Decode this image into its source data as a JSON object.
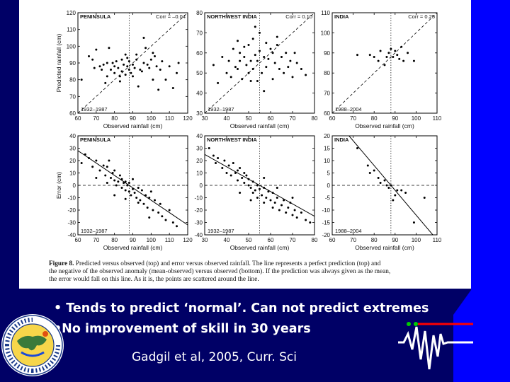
{
  "slide": {
    "bullets": [
      "• Tends to predict ‘normal’. Can not predict extremes",
      "•No improvement of skill in 30 years"
    ],
    "citation": "Gadgil et al, 2005, Curr. Sci"
  },
  "figure": {
    "caption_label": "Figure 8.",
    "caption_lines": [
      "Predicted versus observed (top) and error versus observed rainfall. The line represents a perfect prediction (top) and",
      "the negative of the observed anomaly (mean-observed) versus observed (bottom). If the prediction was always given as the mean,",
      "the error would fall on this line. As it is, the points are scattered around the line."
    ]
  },
  "colors": {
    "background": "#000066",
    "accent_blue": "#0000ff",
    "line_red": "#ff0000",
    "dot_green": "#00cc00"
  },
  "chart_data": [
    {
      "type": "scatter",
      "title": "PENINSULA",
      "corr": "Corr = –0.04",
      "period": "1932–1987",
      "xlabel": "Observed rainfall (cm)",
      "ylabel": "Predicted rainfall (cm)",
      "xlim": [
        60,
        120
      ],
      "ylim": [
        60,
        120
      ],
      "xticks": [
        60,
        70,
        80,
        90,
        100,
        110,
        120
      ],
      "yticks": [
        60,
        70,
        80,
        90,
        100,
        110,
        120
      ],
      "mean": 88,
      "reference": "identity",
      "points": [
        [
          62,
          80
        ],
        [
          66,
          94
        ],
        [
          68,
          92
        ],
        [
          70,
          98
        ],
        [
          72,
          88
        ],
        [
          73,
          86
        ],
        [
          74,
          89
        ],
        [
          75,
          78
        ],
        [
          76,
          82
        ],
        [
          77,
          99
        ],
        [
          78,
          86
        ],
        [
          79,
          90
        ],
        [
          80,
          88
        ],
        [
          80,
          84
        ],
        [
          81,
          91
        ],
        [
          82,
          87
        ],
        [
          83,
          79
        ],
        [
          84,
          92
        ],
        [
          84,
          85
        ],
        [
          85,
          89
        ],
        [
          86,
          83
        ],
        [
          86,
          95
        ],
        [
          87,
          88
        ],
        [
          88,
          86
        ],
        [
          88,
          91
        ],
        [
          89,
          84
        ],
        [
          90,
          82
        ],
        [
          90,
          89
        ],
        [
          91,
          87
        ],
        [
          92,
          92
        ],
        [
          93,
          76
        ],
        [
          94,
          86
        ],
        [
          95,
          85
        ],
        [
          96,
          90
        ],
        [
          96,
          105
        ],
        [
          98,
          89
        ],
        [
          99,
          87
        ],
        [
          100,
          92
        ],
        [
          101,
          80
        ],
        [
          102,
          94
        ],
        [
          103,
          88
        ],
        [
          104,
          74
        ],
        [
          105,
          86
        ],
        [
          106,
          91
        ],
        [
          108,
          80
        ],
        [
          110,
          88
        ],
        [
          112,
          75
        ],
        [
          114,
          84
        ],
        [
          115,
          90
        ],
        [
          101,
          96
        ],
        [
          97,
          99
        ],
        [
          92,
          95
        ],
        [
          87,
          93
        ],
        [
          83,
          82
        ],
        [
          76,
          90
        ],
        [
          69,
          87
        ]
      ]
    },
    {
      "type": "scatter",
      "title": "NORTHWEST INDIA",
      "corr": "Corr = 0.10",
      "period": "1932–1987",
      "xlabel": "Observed rainfall (cm)",
      "ylabel": "",
      "xlim": [
        30,
        80
      ],
      "ylim": [
        30,
        80
      ],
      "xticks": [
        30,
        40,
        50,
        60,
        70,
        80
      ],
      "yticks": [
        30,
        40,
        50,
        60,
        70,
        80
      ],
      "mean": 55,
      "reference": "identity",
      "points": [
        [
          34,
          54
        ],
        [
          36,
          45
        ],
        [
          38,
          58
        ],
        [
          40,
          50
        ],
        [
          41,
          56
        ],
        [
          42,
          48
        ],
        [
          43,
          62
        ],
        [
          44,
          53
        ],
        [
          45,
          52
        ],
        [
          46,
          60
        ],
        [
          46,
          56
        ],
        [
          47,
          47
        ],
        [
          48,
          58
        ],
        [
          48,
          63
        ],
        [
          49,
          54
        ],
        [
          50,
          50
        ],
        [
          50,
          64
        ],
        [
          51,
          56
        ],
        [
          52,
          52
        ],
        [
          52,
          67
        ],
        [
          53,
          59
        ],
        [
          54,
          46
        ],
        [
          54,
          56
        ],
        [
          55,
          70
        ],
        [
          55,
          61
        ],
        [
          56,
          50
        ],
        [
          57,
          58
        ],
        [
          58,
          65
        ],
        [
          58,
          53
        ],
        [
          59,
          57
        ],
        [
          60,
          62
        ],
        [
          61,
          47
        ],
        [
          61,
          60
        ],
        [
          62,
          55
        ],
        [
          63,
          64
        ],
        [
          64,
          52
        ],
        [
          65,
          58
        ],
        [
          66,
          50
        ],
        [
          67,
          60
        ],
        [
          68,
          53
        ],
        [
          69,
          56
        ],
        [
          70,
          48
        ],
        [
          71,
          60
        ],
        [
          72,
          55
        ],
        [
          74,
          52
        ],
        [
          76,
          49
        ],
        [
          57,
          41
        ],
        [
          45,
          66
        ],
        [
          51,
          46
        ],
        [
          63,
          68
        ],
        [
          53,
          73
        ]
      ]
    },
    {
      "type": "scatter",
      "title": "INDIA",
      "corr": "Corr = 0.25",
      "period": "1988–2004",
      "xlabel": "Observed rainfall (cm)",
      "ylabel": "",
      "xlim": [
        60,
        110
      ],
      "ylim": [
        60,
        110
      ],
      "xticks": [
        60,
        70,
        80,
        90,
        100,
        110
      ],
      "yticks": [
        60,
        70,
        80,
        90,
        100,
        110
      ],
      "mean": 88,
      "reference": "identity",
      "points": [
        [
          72,
          89
        ],
        [
          80,
          88
        ],
        [
          82,
          86
        ],
        [
          83,
          91
        ],
        [
          86,
          88
        ],
        [
          87,
          90
        ],
        [
          88,
          92
        ],
        [
          89,
          88
        ],
        [
          90,
          91
        ],
        [
          91,
          89
        ],
        [
          92,
          87
        ],
        [
          94,
          86
        ],
        [
          96,
          90
        ],
        [
          99,
          86
        ],
        [
          85,
          84
        ],
        [
          78,
          89
        ],
        [
          93,
          93
        ]
      ]
    },
    {
      "type": "scatter",
      "title": "PENINSULA",
      "corr": "",
      "period": "1932–1987",
      "xlabel": "Observed rainfall (cm)",
      "ylabel": "Error (cm)",
      "xlim": [
        60,
        120
      ],
      "ylim": [
        -40,
        40
      ],
      "xticks": [
        60,
        70,
        80,
        90,
        100,
        110,
        120
      ],
      "yticks": [
        -40,
        -30,
        -20,
        -10,
        0,
        10,
        20,
        30,
        40
      ],
      "mean": 88,
      "reference": "mean-minus-observed",
      "points": [
        [
          62,
          18
        ],
        [
          64,
          25
        ],
        [
          66,
          22
        ],
        [
          68,
          15
        ],
        [
          70,
          20
        ],
        [
          72,
          12
        ],
        [
          74,
          16
        ],
        [
          75,
          8
        ],
        [
          76,
          15
        ],
        [
          77,
          20
        ],
        [
          78,
          6
        ],
        [
          79,
          10
        ],
        [
          80,
          4
        ],
        [
          80,
          12
        ],
        [
          81,
          0
        ],
        [
          82,
          3
        ],
        [
          83,
          8
        ],
        [
          84,
          -2
        ],
        [
          84,
          5
        ],
        [
          85,
          2
        ],
        [
          86,
          -4
        ],
        [
          86,
          3
        ],
        [
          87,
          0
        ],
        [
          88,
          -5
        ],
        [
          88,
          2
        ],
        [
          89,
          -8
        ],
        [
          90,
          -3
        ],
        [
          90,
          5
        ],
        [
          91,
          -6
        ],
        [
          92,
          -10
        ],
        [
          93,
          -2
        ],
        [
          94,
          -12
        ],
        [
          95,
          -4
        ],
        [
          96,
          -15
        ],
        [
          97,
          -8
        ],
        [
          98,
          -18
        ],
        [
          99,
          -10
        ],
        [
          100,
          -5
        ],
        [
          101,
          -20
        ],
        [
          102,
          -12
        ],
        [
          104,
          -22
        ],
        [
          105,
          -15
        ],
        [
          106,
          -25
        ],
        [
          108,
          -28
        ],
        [
          110,
          -20
        ],
        [
          112,
          -30
        ],
        [
          114,
          -33
        ],
        [
          99,
          -26
        ],
        [
          93,
          -14
        ],
        [
          86,
          -11
        ],
        [
          80,
          -8
        ],
        [
          76,
          2
        ],
        [
          70,
          6
        ]
      ]
    },
    {
      "type": "scatter",
      "title": "NORTHWEST INDIA",
      "corr": "",
      "period": "1932–1987",
      "xlabel": "Observed rainfall (cm)",
      "ylabel": "",
      "xlim": [
        30,
        80
      ],
      "ylim": [
        -40,
        40
      ],
      "xticks": [
        30,
        40,
        50,
        60,
        70,
        80
      ],
      "yticks": [
        -40,
        -30,
        -20,
        -10,
        0,
        10,
        20,
        30,
        40
      ],
      "mean": 55,
      "reference": "mean-minus-observed",
      "points": [
        [
          32,
          30
        ],
        [
          34,
          24
        ],
        [
          35,
          18
        ],
        [
          36,
          22
        ],
        [
          38,
          14
        ],
        [
          39,
          20
        ],
        [
          40,
          10
        ],
        [
          41,
          16
        ],
        [
          42,
          8
        ],
        [
          43,
          18
        ],
        [
          44,
          10
        ],
        [
          45,
          4
        ],
        [
          45,
          12
        ],
        [
          46,
          14
        ],
        [
          47,
          6
        ],
        [
          48,
          2
        ],
        [
          48,
          10
        ],
        [
          49,
          8
        ],
        [
          50,
          0
        ],
        [
          50,
          5
        ],
        [
          51,
          -2
        ],
        [
          52,
          3
        ],
        [
          52,
          -6
        ],
        [
          53,
          -4
        ],
        [
          54,
          0
        ],
        [
          54,
          -10
        ],
        [
          55,
          -3
        ],
        [
          56,
          -8
        ],
        [
          57,
          -14
        ],
        [
          57,
          -2
        ],
        [
          58,
          -10
        ],
        [
          59,
          -5
        ],
        [
          60,
          -12
        ],
        [
          61,
          -18
        ],
        [
          61,
          -6
        ],
        [
          62,
          -14
        ],
        [
          63,
          -10
        ],
        [
          64,
          -20
        ],
        [
          65,
          -16
        ],
        [
          66,
          -12
        ],
        [
          67,
          -22
        ],
        [
          68,
          -18
        ],
        [
          69,
          -14
        ],
        [
          70,
          -24
        ],
        [
          71,
          -20
        ],
        [
          72,
          -26
        ],
        [
          74,
          -22
        ],
        [
          76,
          -28
        ],
        [
          78,
          -30
        ],
        [
          51,
          -12
        ],
        [
          46,
          -6
        ],
        [
          57,
          6
        ],
        [
          63,
          -2
        ],
        [
          70,
          -10
        ]
      ]
    },
    {
      "type": "scatter",
      "title": "INDIA",
      "corr": "",
      "period": "1988–2004",
      "xlabel": "Observed rainfall (cm)",
      "ylabel": "",
      "xlim": [
        60,
        110
      ],
      "ylim": [
        -20,
        20
      ],
      "xticks": [
        60,
        70,
        80,
        90,
        100,
        110
      ],
      "yticks": [
        -20,
        -15,
        -10,
        -5,
        0,
        5,
        10,
        15,
        20
      ],
      "mean": 88,
      "reference": "mean-minus-observed",
      "points": [
        [
          72,
          15
        ],
        [
          77,
          8
        ],
        [
          78,
          5
        ],
        [
          80,
          6
        ],
        [
          82,
          3
        ],
        [
          83,
          1
        ],
        [
          85,
          2
        ],
        [
          86,
          0
        ],
        [
          87,
          -1
        ],
        [
          88,
          0
        ],
        [
          89,
          -6
        ],
        [
          90,
          -4
        ],
        [
          91,
          -2
        ],
        [
          93,
          -2
        ],
        [
          95,
          -3
        ],
        [
          99,
          -15
        ],
        [
          104,
          -5
        ]
      ]
    }
  ]
}
